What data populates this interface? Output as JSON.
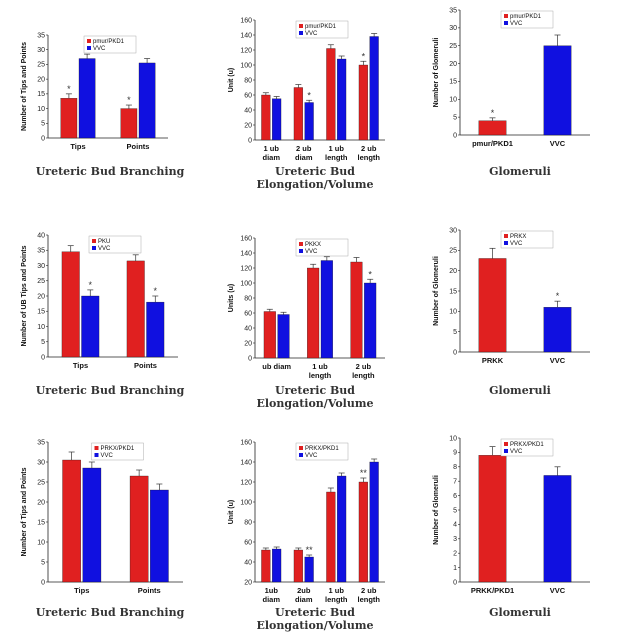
{
  "chart_data": [
    {
      "type": "bar",
      "title": "Ureteric Bud Branching",
      "ylabel": "Number of Tips and Points",
      "ylim": [
        0,
        35
      ],
      "yticks": [
        0,
        5,
        10,
        15,
        20,
        25,
        30,
        35
      ],
      "categories": [
        "Tips",
        "Points"
      ],
      "series": [
        {
          "name": "pmur/PKD1",
          "color": "#e02020",
          "values": [
            13.5,
            10
          ],
          "errors": [
            1.5,
            1.2
          ],
          "sig": [
            "*",
            "*"
          ]
        },
        {
          "name": "VVC",
          "color": "#1010e0",
          "values": [
            27,
            25.5
          ],
          "errors": [
            1.5,
            1.5
          ],
          "sig": [
            "",
            ""
          ]
        }
      ],
      "legend": "top"
    },
    {
      "type": "bar",
      "title": "Ureteric Bud Elongation/Volume",
      "ylabel": "Unit (u)",
      "ylim": [
        0,
        160
      ],
      "yticks": [
        0,
        20,
        40,
        60,
        80,
        100,
        120,
        140,
        160
      ],
      "categories": [
        [
          "1 ub",
          "diam"
        ],
        [
          "2 ub",
          "diam"
        ],
        [
          "1 ub",
          "length"
        ],
        [
          "2 ub",
          "length"
        ]
      ],
      "series": [
        {
          "name": "pmur/PKD1",
          "color": "#e02020",
          "values": [
            60,
            70,
            122,
            100
          ],
          "errors": [
            3,
            4,
            5,
            5
          ],
          "sig": [
            "",
            "",
            "",
            "*"
          ]
        },
        {
          "name": "VVC",
          "color": "#1010e0",
          "values": [
            55,
            50,
            108,
            138
          ],
          "errors": [
            3,
            3,
            4,
            4
          ],
          "sig": [
            "",
            "*",
            "",
            ""
          ]
        }
      ],
      "legend": "top"
    },
    {
      "type": "bar",
      "title": "Glomeruli",
      "ylabel": "Number of Glomeruli",
      "ylim": [
        0,
        35
      ],
      "yticks": [
        0,
        5,
        10,
        15,
        20,
        25,
        30,
        35
      ],
      "categories": [
        "pmur/PKD1",
        "VVC"
      ],
      "series": [
        {
          "name": "pmur/PKD1",
          "color": "#e02020",
          "values": [
            4,
            null
          ],
          "errors": [
            0.8,
            null
          ],
          "sig": [
            "*",
            ""
          ]
        },
        {
          "name": "VVC",
          "color": "#1010e0",
          "values": [
            null,
            25
          ],
          "errors": [
            null,
            3
          ],
          "sig": [
            "",
            ""
          ]
        }
      ],
      "legend": "top"
    },
    {
      "type": "bar",
      "title": "Ureteric Bud Branching",
      "ylabel": "Number of UB Tips and Points",
      "ylim": [
        0,
        40
      ],
      "yticks": [
        0,
        5,
        10,
        15,
        20,
        25,
        30,
        35,
        40
      ],
      "categories": [
        "Tips",
        "Points"
      ],
      "series": [
        {
          "name": "PKU",
          "color": "#e02020",
          "values": [
            34.5,
            31.5
          ],
          "errors": [
            2,
            2
          ],
          "sig": [
            "",
            ""
          ]
        },
        {
          "name": "VVC",
          "color": "#1010e0",
          "values": [
            20,
            18
          ],
          "errors": [
            2,
            2
          ],
          "sig": [
            "*",
            "*"
          ]
        }
      ],
      "legend": "top"
    },
    {
      "type": "bar",
      "title": "Ureteric Bud Elongation/Volume",
      "ylabel": "Units (u)",
      "ylim": [
        0,
        160
      ],
      "yticks": [
        0,
        20,
        40,
        60,
        80,
        100,
        120,
        140,
        160
      ],
      "categories": [
        "ub diam",
        [
          "1 ub",
          "length"
        ],
        [
          "2 ub",
          "length"
        ]
      ],
      "series": [
        {
          "name": "PKKX",
          "color": "#e02020",
          "values": [
            62,
            120,
            128
          ],
          "errors": [
            3,
            5,
            6
          ],
          "sig": [
            "",
            "",
            ""
          ]
        },
        {
          "name": "VVC",
          "color": "#1010e0",
          "values": [
            58,
            130,
            100
          ],
          "errors": [
            3,
            5,
            5
          ],
          "sig": [
            "",
            "",
            "*"
          ]
        }
      ],
      "legend": "top"
    },
    {
      "type": "bar",
      "title": "Glomeruli",
      "ylabel": "Number of Glomeruli",
      "ylim": [
        0,
        30
      ],
      "yticks": [
        0,
        5,
        10,
        15,
        20,
        25,
        30
      ],
      "categories": [
        "PRKK",
        "VVC"
      ],
      "series": [
        {
          "name": "PRKX",
          "color": "#e02020",
          "values": [
            23,
            null
          ],
          "errors": [
            2.5,
            null
          ],
          "sig": [
            "",
            ""
          ]
        },
        {
          "name": "VVC",
          "color": "#1010e0",
          "values": [
            null,
            11
          ],
          "errors": [
            null,
            1.5
          ],
          "sig": [
            "",
            "*"
          ]
        }
      ],
      "legend": "top"
    },
    {
      "type": "bar",
      "title": "Ureteric Bud Branching",
      "ylabel": "Number of Tips and Points",
      "ylim": [
        0,
        35
      ],
      "yticks": [
        0,
        5,
        10,
        15,
        20,
        25,
        30,
        35
      ],
      "categories": [
        "Tips",
        "Points"
      ],
      "series": [
        {
          "name": "PRKX/PKD1",
          "color": "#e02020",
          "values": [
            30.5,
            26.5
          ],
          "errors": [
            2,
            1.5
          ],
          "sig": [
            "",
            ""
          ]
        },
        {
          "name": "VVC",
          "color": "#1010e0",
          "values": [
            28.5,
            23
          ],
          "errors": [
            1.5,
            1.5
          ],
          "sig": [
            "",
            ""
          ]
        }
      ],
      "legend": "top"
    },
    {
      "type": "bar",
      "title": "Ureteric Bud Elongation/Volume",
      "ylabel": "Unit (u)",
      "ylim": [
        20,
        160
      ],
      "yticks": [
        20,
        40,
        60,
        80,
        100,
        120,
        140,
        160
      ],
      "categories": [
        [
          "1ub",
          "diam"
        ],
        [
          "2ub",
          "diam"
        ],
        [
          "1 ub",
          "length"
        ],
        [
          "2 ub",
          "length"
        ]
      ],
      "series": [
        {
          "name": "PRKX/PKD1",
          "color": "#e02020",
          "values": [
            52,
            52,
            110,
            120
          ],
          "errors": [
            2,
            2,
            4,
            4
          ],
          "sig": [
            "",
            "",
            "",
            "**"
          ]
        },
        {
          "name": "VVC",
          "color": "#1010e0",
          "values": [
            53,
            45,
            126,
            140
          ],
          "errors": [
            2,
            2,
            3,
            3
          ],
          "sig": [
            "",
            "**",
            "",
            ""
          ]
        }
      ],
      "legend": "top"
    },
    {
      "type": "bar",
      "title": "Glomeruli",
      "ylabel": "Number of Glomeruli",
      "ylim": [
        0,
        10
      ],
      "yticks": [
        0,
        1,
        2,
        3,
        4,
        5,
        6,
        7,
        8,
        9,
        10
      ],
      "categories": [
        "PRKK/PKD1",
        "VVC"
      ],
      "series": [
        {
          "name": "PRKX/PKD1",
          "color": "#e02020",
          "values": [
            8.8,
            null
          ],
          "errors": [
            0.6,
            null
          ],
          "sig": [
            "",
            ""
          ]
        },
        {
          "name": "VVC",
          "color": "#1010e0",
          "values": [
            null,
            7.4
          ],
          "errors": [
            null,
            0.6
          ],
          "sig": [
            "",
            ""
          ]
        }
      ],
      "legend": "top"
    }
  ]
}
